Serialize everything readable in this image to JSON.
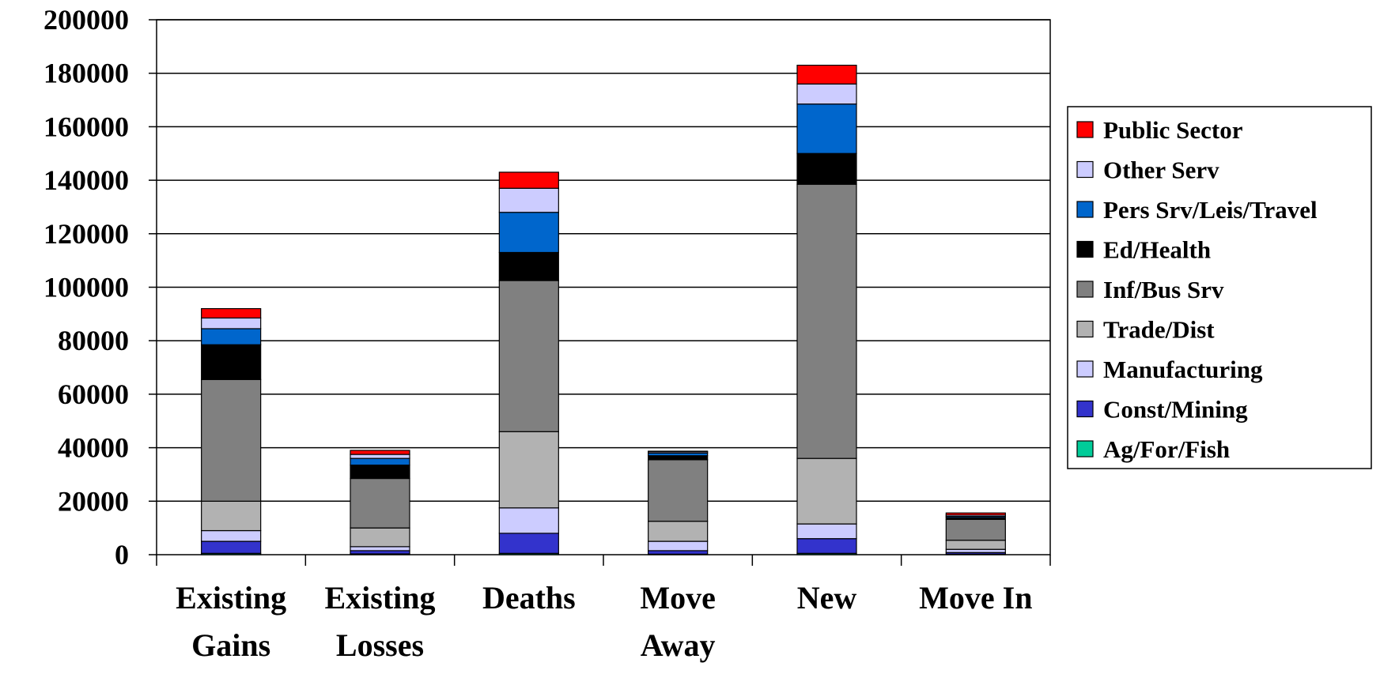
{
  "chart_data": {
    "type": "bar",
    "stacked": true,
    "title": "",
    "xlabel": "",
    "ylabel": "",
    "categories": [
      [
        "Existing",
        "Gains"
      ],
      [
        "Existing",
        "Losses"
      ],
      [
        "Deaths"
      ],
      [
        "Move",
        "Away"
      ],
      [
        "New"
      ],
      [
        "Move In"
      ]
    ],
    "ylim": [
      0,
      200000
    ],
    "yticks": [
      0,
      20000,
      40000,
      60000,
      80000,
      100000,
      120000,
      140000,
      160000,
      180000,
      200000
    ],
    "grid": true,
    "legend": "right",
    "series": [
      {
        "name": "Ag/For/Fish",
        "color": "#00cc99",
        "values": [
          500,
          300,
          500,
          200,
          500,
          200
        ]
      },
      {
        "name": "Const/Mining",
        "color": "#3333cc",
        "values": [
          4500,
          1200,
          7500,
          1300,
          5500,
          600
        ]
      },
      {
        "name": "Manufacturing",
        "color": "#ccccff",
        "values": [
          4000,
          1500,
          9500,
          3500,
          5500,
          1200
        ]
      },
      {
        "name": "Trade/Dist",
        "color": "#b2b2b2",
        "values": [
          11000,
          7000,
          28500,
          7500,
          24500,
          3400
        ]
      },
      {
        "name": "Inf/Bus Srv",
        "color": "#808080",
        "values": [
          45500,
          18500,
          56500,
          23000,
          102500,
          7800
        ]
      },
      {
        "name": "Ed/Health",
        "color": "#000000",
        "values": [
          13000,
          5000,
          10500,
          1500,
          11500,
          600
        ]
      },
      {
        "name": "Pers Srv/Leis/Travel",
        "color": "#0066cc",
        "values": [
          6000,
          2500,
          15000,
          1000,
          18500,
          500
        ]
      },
      {
        "name": "Other Serv",
        "color": "#ccccff",
        "values": [
          4000,
          1500,
          9000,
          500,
          7500,
          500
        ]
      },
      {
        "name": "Public Sector",
        "color": "#ff0000",
        "values": [
          3500,
          1500,
          6000,
          200,
          7000,
          800
        ]
      }
    ]
  }
}
